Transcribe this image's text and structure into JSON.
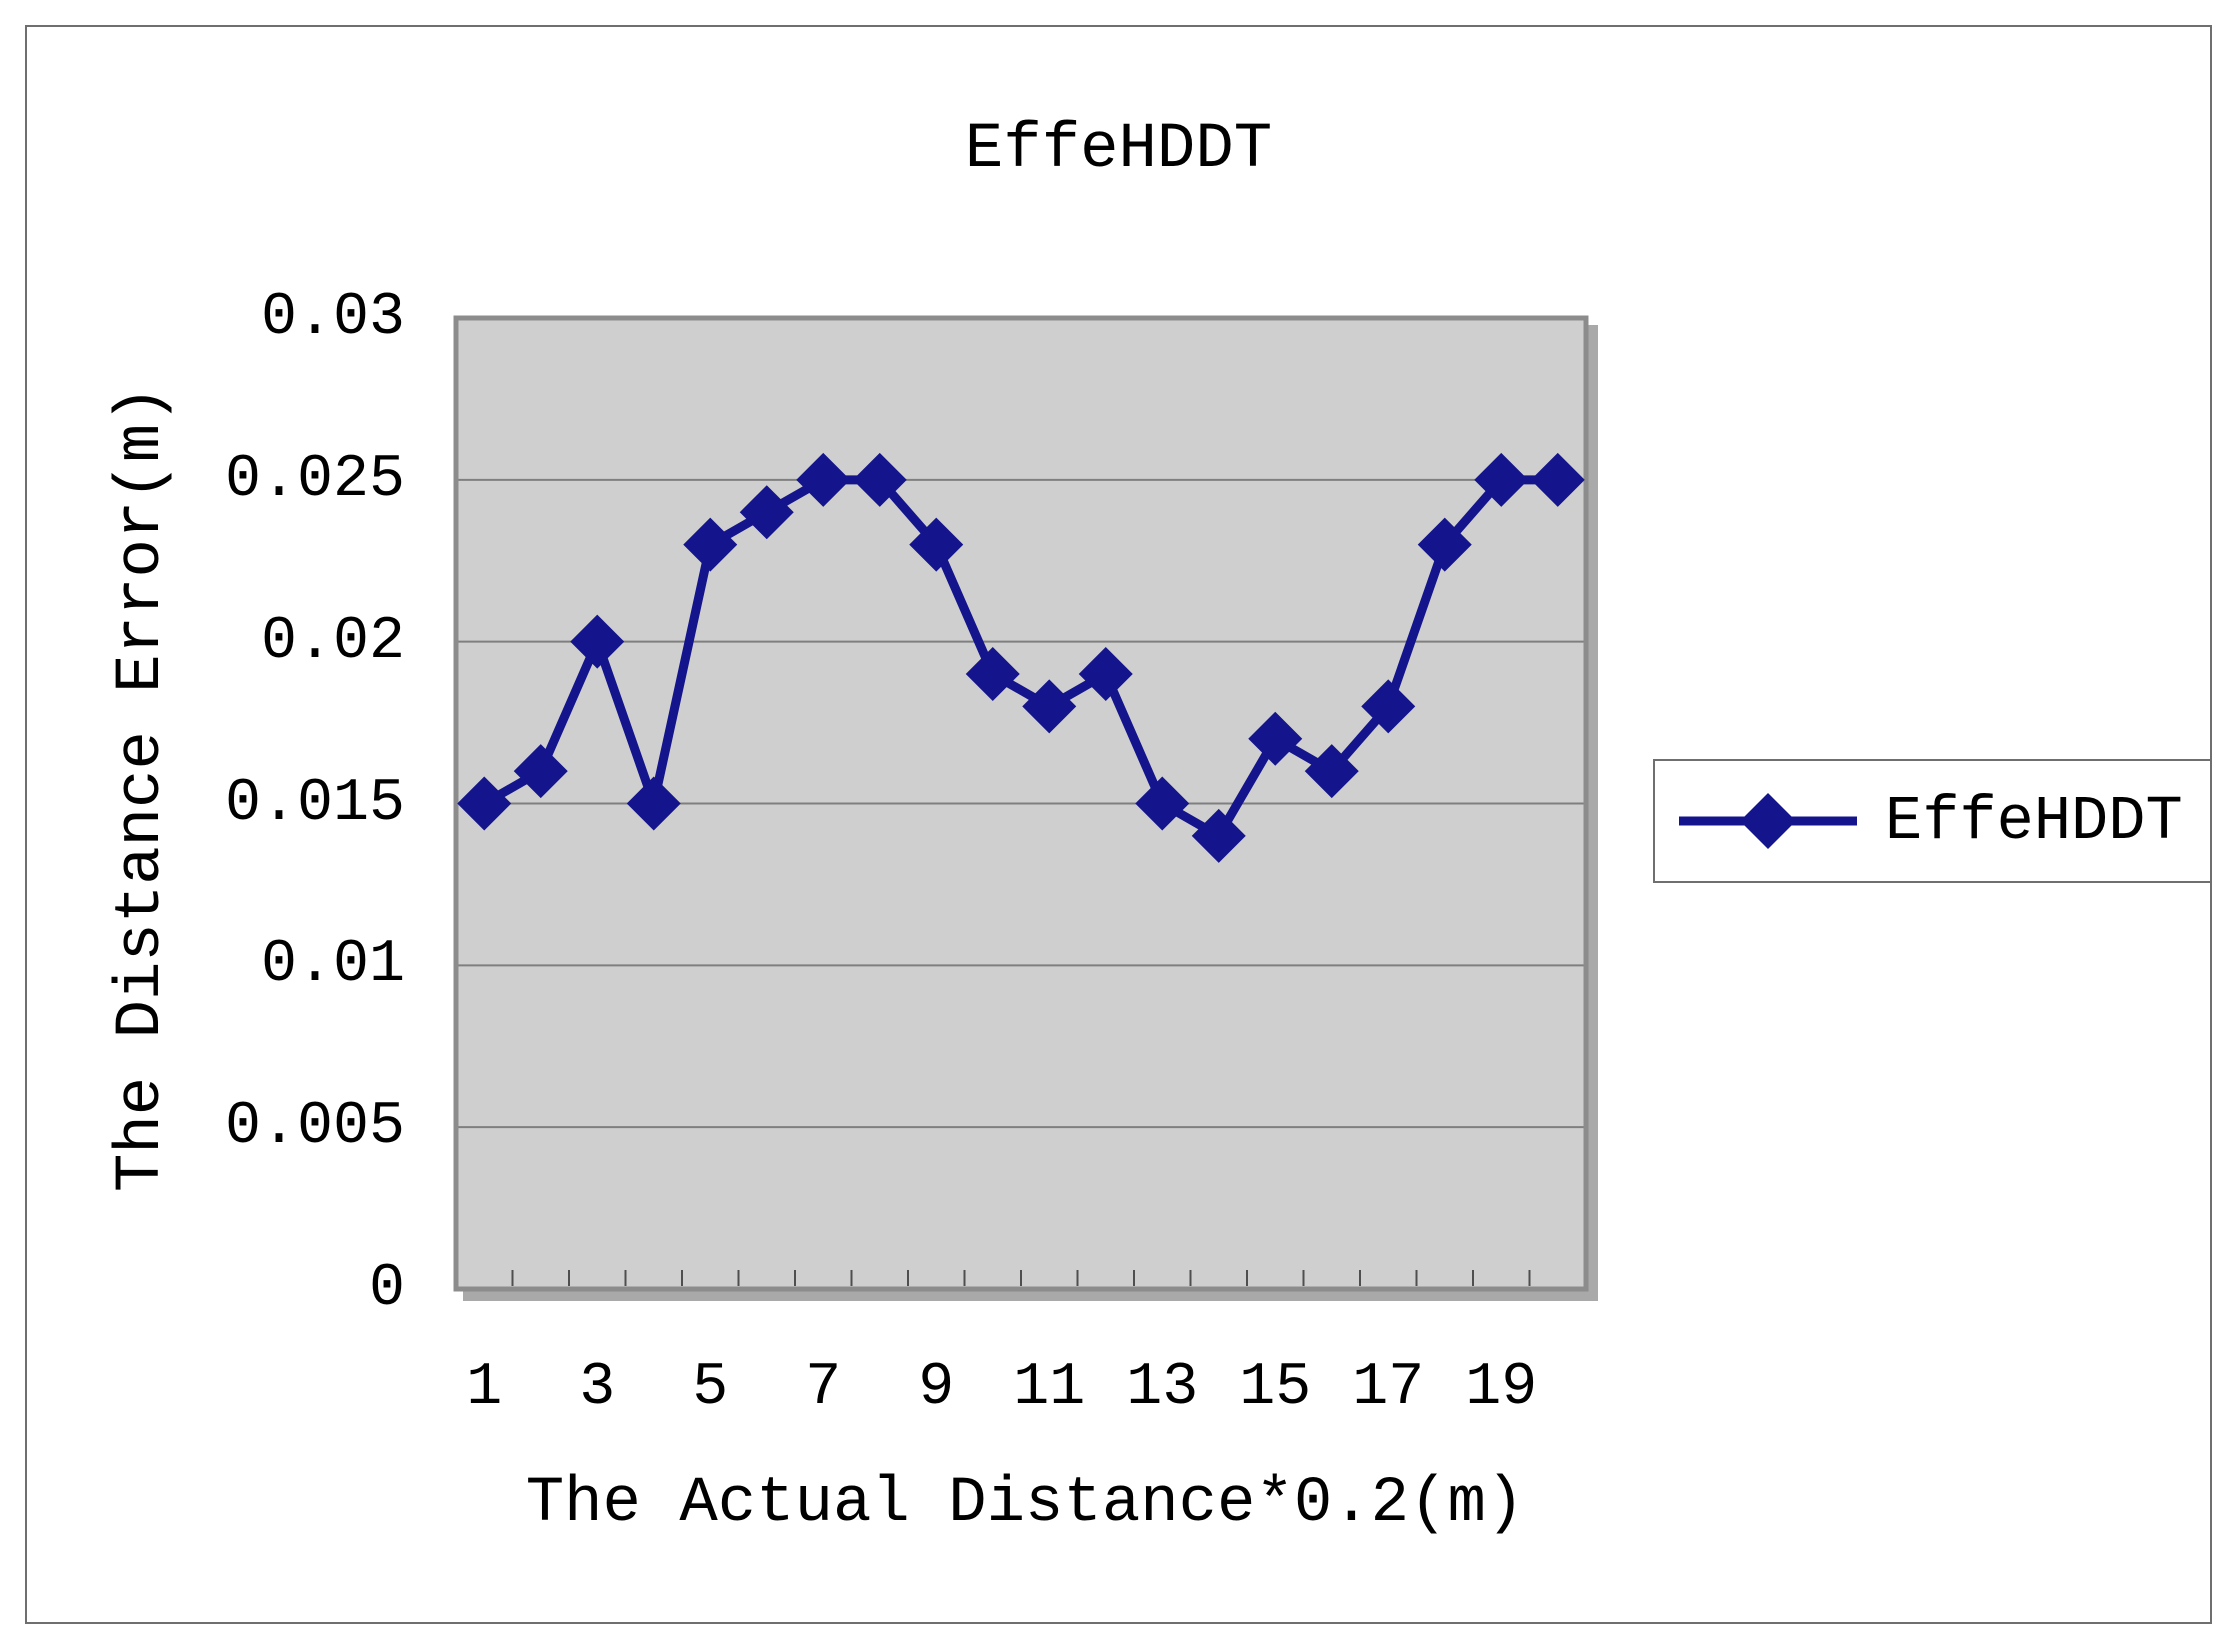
{
  "title": "EffeHDDT",
  "axes": {
    "y": {
      "title": "The Distance Error(m)",
      "tick_labels": [
        "0.03",
        "0.025",
        "0.02",
        "0.015",
        "0.01",
        "0.005",
        "0"
      ],
      "min": 0,
      "max": 0.03,
      "step": 0.005
    },
    "x": {
      "title": "The Actual Distance*0.2(m)",
      "tick_labels": [
        "1",
        "3",
        "5",
        "7",
        "9",
        "11",
        "13",
        "15",
        "17",
        "19"
      ]
    }
  },
  "legend": {
    "label": "EffeHDDT",
    "position": "right",
    "marker": "diamond-with-line"
  },
  "colors": {
    "series": "#14148c",
    "plot_background": "#cfcfcf",
    "gridline": "#7f7f7f",
    "plot_border": "#8c8c8c",
    "plot_shadow": "#a9a9a9",
    "tick": "#4f4f4f",
    "frame_border": "#6f6f6f",
    "text": "#000000"
  },
  "chart_data": {
    "type": "line",
    "title": "EffeHDDT",
    "xlabel": "The Actual Distance*0.2(m)",
    "ylabel": "The Distance Error(m)",
    "categories": [
      1,
      2,
      3,
      4,
      5,
      6,
      7,
      8,
      9,
      10,
      11,
      12,
      13,
      14,
      15,
      16,
      17,
      18,
      19,
      20
    ],
    "series": [
      {
        "name": "EffeHDDT",
        "values": [
          0.015,
          0.016,
          0.02,
          0.015,
          0.023,
          0.024,
          0.025,
          0.025,
          0.023,
          0.019,
          0.018,
          0.019,
          0.015,
          0.014,
          0.017,
          0.016,
          0.018,
          0.023,
          0.025,
          0.025
        ]
      }
    ],
    "ylim": [
      0,
      0.03
    ],
    "ytick_step": 0.005,
    "xticks_shown": [
      1,
      3,
      5,
      7,
      9,
      11,
      13,
      15,
      17,
      19
    ],
    "grid": true,
    "gridlines": "horizontal",
    "legend_position": "right",
    "marker": "diamond",
    "plot_area_shaded": true
  }
}
